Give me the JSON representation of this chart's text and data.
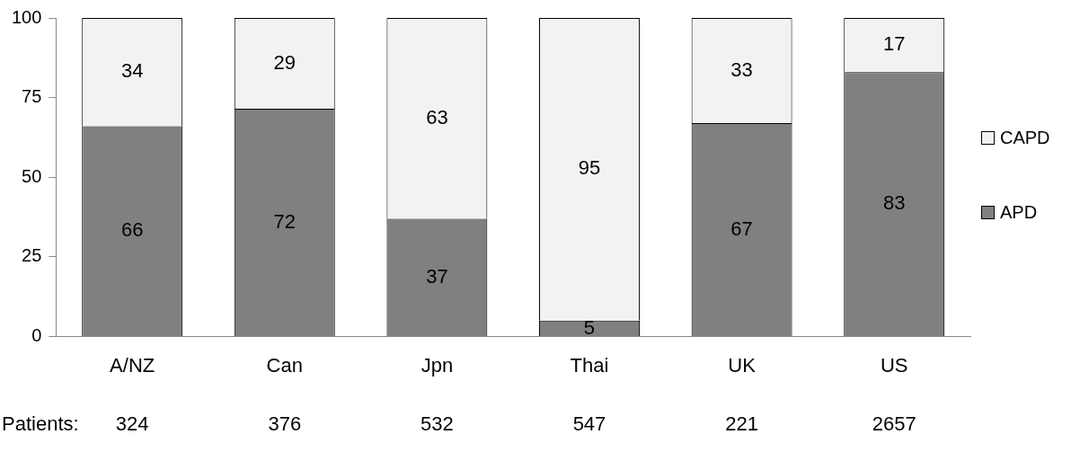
{
  "chart_data": {
    "type": "bar",
    "stacked": true,
    "categories": [
      "A/NZ",
      "Can",
      "Jpn",
      "Thai",
      "UK",
      "US"
    ],
    "series": [
      {
        "name": "APD",
        "color": "#808080",
        "values": [
          66,
          71.5,
          37,
          5,
          67,
          83
        ],
        "value_labels": [
          "66",
          "72",
          "37",
          "5",
          "67",
          "83"
        ]
      },
      {
        "name": "CAPD",
        "color": "#f2f2f2",
        "values": [
          34,
          28.5,
          63,
          95,
          33,
          17
        ],
        "value_labels": [
          "34",
          "29",
          "63",
          "95",
          "33",
          "17"
        ]
      }
    ],
    "ylim": [
      0,
      100
    ],
    "yticks": [
      0,
      25,
      50,
      75,
      100
    ],
    "grid": false,
    "legend": "right",
    "annotations": [
      "Patients:",
      "324",
      "376",
      "532",
      "547",
      "221",
      "2657"
    ]
  }
}
